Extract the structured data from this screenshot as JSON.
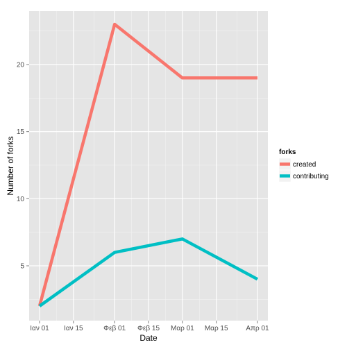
{
  "chart_data": {
    "type": "line",
    "xlabel": "Date",
    "ylabel": "Number of forks",
    "x": [
      "2014-01-01",
      "2014-02-01",
      "2014-03-01",
      "2014-04-01"
    ],
    "xlim": [
      "2014-01-01",
      "2014-04-01"
    ],
    "x_ticks": [
      {
        "date": "2014-01-01",
        "label": "Ιαν 01"
      },
      {
        "date": "2014-01-15",
        "label": "Ιαν 15"
      },
      {
        "date": "2014-02-01",
        "label": "Φεβ 01"
      },
      {
        "date": "2014-02-15",
        "label": "Φεβ 15"
      },
      {
        "date": "2014-03-01",
        "label": "Μαρ 01"
      },
      {
        "date": "2014-03-15",
        "label": "Μαρ 15"
      },
      {
        "date": "2014-04-01",
        "label": "Απρ 01"
      }
    ],
    "ylim": [
      2,
      23
    ],
    "y_ticks": [
      5,
      10,
      15,
      20
    ],
    "grid": true,
    "legend": {
      "title": "forks",
      "position": "right"
    },
    "series": [
      {
        "name": "created",
        "color": "#F8766D",
        "values": [
          2,
          23,
          19,
          19
        ]
      },
      {
        "name": "contributing",
        "color": "#00BFC4",
        "values": [
          2,
          6,
          7,
          4
        ]
      }
    ]
  }
}
